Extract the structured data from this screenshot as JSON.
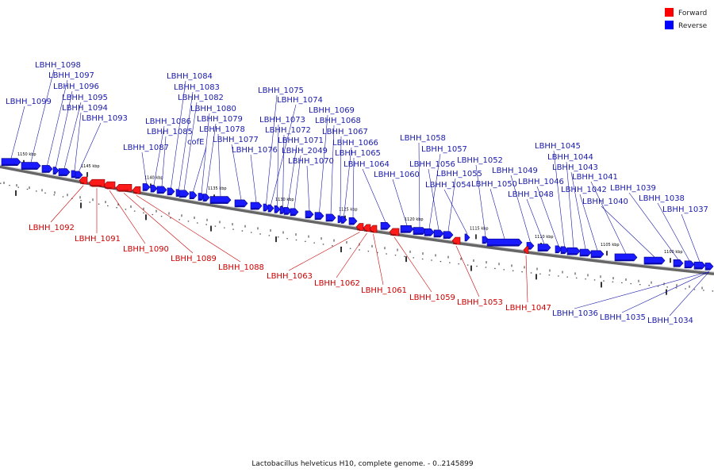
{
  "legend": [
    {
      "name": "Forward",
      "color": "#ff0000"
    },
    {
      "name": "Reverse",
      "color": "#0000ff"
    }
  ],
  "caption": "Lactobacillus helveticus H10, complete genome. - 0..2145899",
  "tick_labels": [
    "1150 kbp",
    "1145 kbp",
    "1140 kbp",
    "1135 kbp",
    "1130 kbp",
    "1125 kbp",
    "1120 kbp",
    "1115 kbp",
    "1110 kbp",
    "1105 kbp",
    "1100 kbp"
  ],
  "reverse_genes": [
    "LBHH_1099",
    "LBHH_1098",
    "LBHH_1097",
    "LBHH_1096",
    "LBHH_1095",
    "LBHH_1094",
    "LBHH_1093",
    "LBHH_1087",
    "LBHH_1086",
    "LBHH_1085",
    "LBHH_1084",
    "LBHH_1083",
    "LBHH_1082",
    "cofE",
    "LBHH_1080",
    "LBHH_1079",
    "LBHH_1078",
    "LBHH_1077",
    "LBHH_1076",
    "LBHH_1075",
    "LBHH_1074",
    "LBHH_1073",
    "LBHH_1072",
    "LBHH_1071",
    "LBHH_2049",
    "LBHH_1070",
    "LBHH_1069",
    "LBHH_1068",
    "LBHH_1067",
    "LBHH_1066",
    "LBHH_1065",
    "LBHH_1064",
    "LBHH_1060",
    "LBHH_1058",
    "LBHH_1057",
    "LBHH_1056",
    "LBHH_1055",
    "LBHH_1054",
    "LBHH_1052",
    "LBHH_1050",
    "LBHH_1049",
    "LBHH_1048",
    "LBHH_1046",
    "LBHH_1045",
    "LBHH_1044",
    "LBHH_1043",
    "LBHH_1042",
    "LBHH_1041",
    "LBHH_1040",
    "LBHH_1039",
    "LBHH_1038",
    "LBHH_1037",
    "LBHH_1036",
    "LBHH_1035",
    "LBHH_1034"
  ],
  "forward_genes": [
    "LBHH_1092",
    "LBHH_1091",
    "LBHH_1090",
    "LBHH_1089",
    "LBHH_1088",
    "LBHH_1063",
    "LBHH_1062",
    "LBHH_1061",
    "LBHH_1059",
    "LBHH_1053",
    "LBHH_1047"
  ]
}
